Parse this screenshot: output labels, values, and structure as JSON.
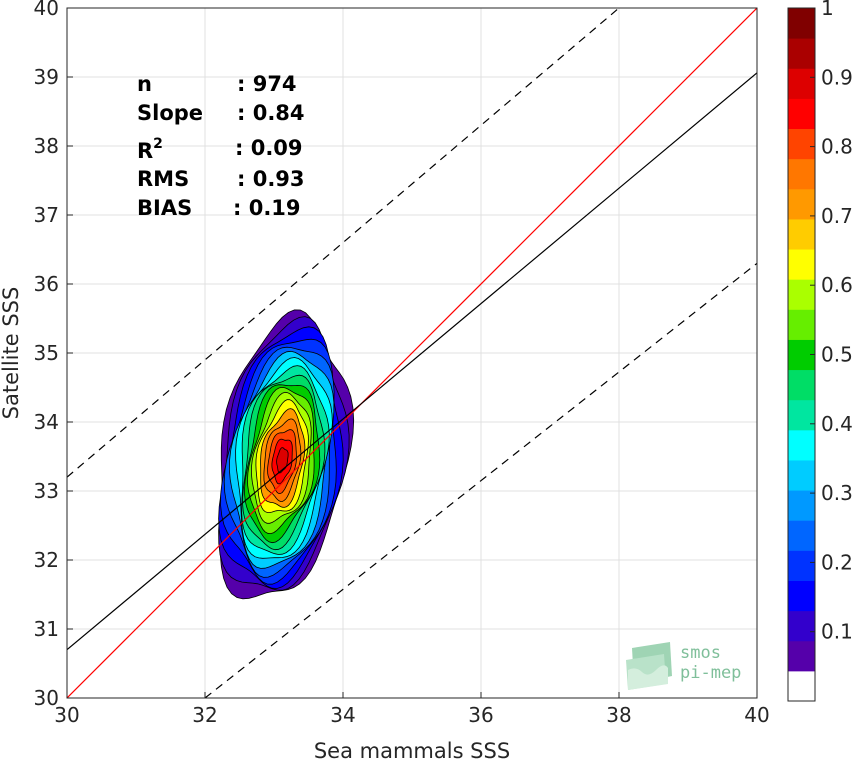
{
  "chart_data": {
    "type": "heatmap",
    "subtype": "density contour scatter comparison",
    "xlabel": "Sea mammals SSS",
    "ylabel": "Satellite SSS",
    "xlim": [
      30,
      40
    ],
    "ylim": [
      30,
      40
    ],
    "xticks": [
      30,
      32,
      34,
      36,
      38,
      40
    ],
    "yticks": [
      30,
      31,
      32,
      33,
      34,
      35,
      36,
      37,
      38,
      39,
      40
    ],
    "grid": true,
    "stats": [
      {
        "label": "n",
        "value": ": 974"
      },
      {
        "label": "Slope",
        "value": ": 0.84"
      },
      {
        "label": "R",
        "sup": "2",
        "value": ": 0.09"
      },
      {
        "label": "RMS",
        "value": ": 0.93"
      },
      {
        "label": "BIAS",
        "value": ": 0.19"
      }
    ],
    "lines": [
      {
        "name": "identity",
        "color": "#ff0000",
        "style": "solid",
        "x": [
          30,
          40
        ],
        "y": [
          30,
          40
        ]
      },
      {
        "name": "regression",
        "color": "#000000",
        "style": "solid",
        "x": [
          30,
          40
        ],
        "y": [
          30.7,
          39.06
        ]
      },
      {
        "name": "upper-bound",
        "color": "#000000",
        "style": "dashed",
        "x": [
          30,
          38
        ],
        "y": [
          33.2,
          40
        ]
      },
      {
        "name": "lower-bound",
        "color": "#000000",
        "style": "dashed",
        "x": [
          32,
          40
        ],
        "y": [
          30,
          36.3
        ]
      }
    ],
    "density": {
      "center": [
        33.12,
        33.45
      ],
      "contour_levels": [
        0.05,
        0.1,
        0.15,
        0.2,
        0.25,
        0.3,
        0.35,
        0.4,
        0.45,
        0.5,
        0.55,
        0.6,
        0.65,
        0.7,
        0.75,
        0.8,
        0.85,
        0.9
      ],
      "extent_x": [
        32.2,
        34.05
      ],
      "extent_y": [
        31.4,
        35.5
      ],
      "peak": 0.9
    },
    "colorbar": {
      "ticks": [
        "0.1",
        "0.2",
        "0.3",
        "0.4",
        "0.5",
        "0.6",
        "0.7",
        "0.8",
        "0.9",
        "1"
      ],
      "range": [
        0,
        1
      ],
      "colormap": "jet",
      "colors": [
        "#ffffff",
        "#5500aa",
        "#3300cc",
        "#0000ff",
        "#0033ff",
        "#0066ff",
        "#0099ff",
        "#00ccff",
        "#00ffff",
        "#00e6a0",
        "#00dd66",
        "#00cc00",
        "#66ee00",
        "#aaff00",
        "#ffff00",
        "#ffcc00",
        "#ff9900",
        "#ff7700",
        "#ff4400",
        "#ff0000",
        "#dd0000",
        "#aa0000",
        "#800000"
      ]
    }
  },
  "logo": {
    "line1": "smos",
    "line2": "pi-mep"
  }
}
